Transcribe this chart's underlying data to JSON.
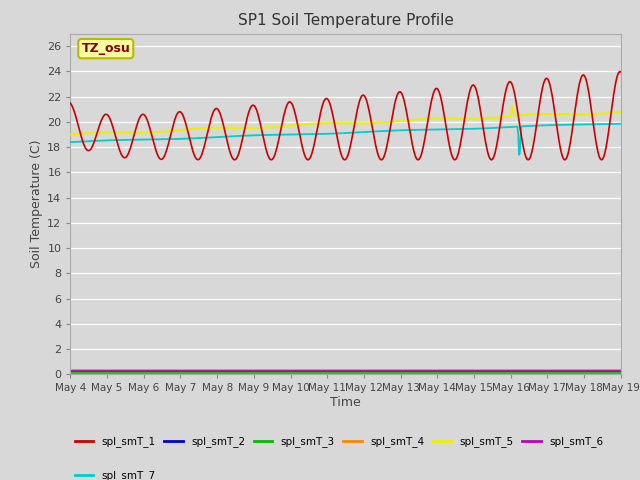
{
  "title": "SP1 Soil Temperature Profile",
  "xlabel": "Time",
  "ylabel": "Soil Temperature (C)",
  "annotation_text": "TZ_osu",
  "annotation_color": "#8B0000",
  "annotation_bg": "#FFFFA0",
  "annotation_border": "#B8B800",
  "bg_color": "#D8D8D8",
  "ylim": [
    0,
    27
  ],
  "yticks": [
    0,
    2,
    4,
    6,
    8,
    10,
    12,
    14,
    16,
    18,
    20,
    22,
    24,
    26
  ],
  "n_days": 15,
  "legend_entries": [
    {
      "label": "spl_smT_1",
      "color": "#CC0000"
    },
    {
      "label": "spl_smT_2",
      "color": "#0000CC"
    },
    {
      "label": "spl_smT_3",
      "color": "#00BB00"
    },
    {
      "label": "spl_smT_4",
      "color": "#FF8800"
    },
    {
      "label": "spl_smT_5",
      "color": "#EEEE00"
    },
    {
      "label": "spl_smT_6",
      "color": "#BB00BB"
    },
    {
      "label": "spl_smT_7",
      "color": "#00CCCC"
    }
  ]
}
